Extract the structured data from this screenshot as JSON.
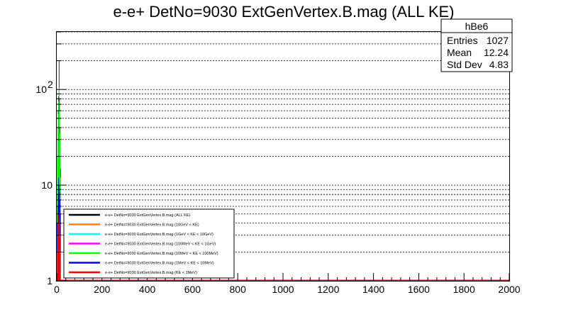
{
  "chart_data": {
    "type": "histogram",
    "title": "e-e+ DetNo=9030 ExtGenVertex.B.mag (ALL KE)",
    "xlabel": "",
    "ylabel": "",
    "xlim": [
      0,
      2000
    ],
    "ylim": [
      1,
      400
    ],
    "y_scale": "log",
    "grid": "y-major-and-minor",
    "x_ticks": [
      0,
      200,
      400,
      600,
      800,
      1000,
      1200,
      1400,
      1600,
      1800,
      2000
    ],
    "y_ticks": [
      {
        "value": 1,
        "label": "1"
      },
      {
        "value": 10,
        "label": "10"
      },
      {
        "value": 100,
        "label": "10",
        "sup": "2"
      }
    ],
    "legend_placement": "bottom-left",
    "series": [
      {
        "name": "e-e+ DetNo=9030 ExtGenVertex.B.mag (ALL KE)",
        "color": "#000000",
        "x": [
          6,
          8,
          10,
          12,
          14,
          16
        ],
        "values": [
          60,
          85,
          200,
          80,
          40,
          15
        ]
      },
      {
        "name": "e-e+ DetNo=9030 ExtGenVertex.B.mag (10GeV < KE)",
        "color": "#ff8000",
        "x": [],
        "values": []
      },
      {
        "name": "e-e+ DetNo=9030 ExtGenVertex.B.mag (1GeV < KE < 10GeV)",
        "color": "#00ffff",
        "x": [],
        "values": []
      },
      {
        "name": "e-e+ DetNo=9030 ExtGenVertex.B.mag (100MeV < KE < 1GeV)",
        "color": "#ff00ff",
        "x": [],
        "values": []
      },
      {
        "name": "e-e+ DetNo=9030 ExtGenVertex.B.mag (10MeV < KE < 100MeV)",
        "color": "#00ff00",
        "x": [
          2,
          4,
          6,
          8,
          10,
          12,
          14,
          16
        ],
        "values": [
          20,
          40,
          55,
          75,
          105,
          60,
          35,
          12
        ]
      },
      {
        "name": "e-e+ DetNo=9030 ExtGenVertex.B.mag (1MeV < KE < 10MeV)",
        "color": "#0000ff",
        "x": [
          2,
          4,
          6,
          8,
          10,
          12,
          14,
          16
        ],
        "values": [
          4,
          6,
          8,
          12,
          10,
          9,
          7,
          5
        ]
      },
      {
        "name": "e-e+ DetNo=9030 ExtGenVertex.B.mag (KE < 1MeV)",
        "color": "#ff0000",
        "x": [
          2,
          4,
          6,
          8,
          10,
          12,
          14,
          16
        ],
        "values": [
          2,
          3,
          4,
          5,
          4.5,
          4,
          3,
          2
        ]
      }
    ],
    "stats_box": {
      "name": "hBe6",
      "rows": [
        {
          "label": "Entries",
          "value": "1027"
        },
        {
          "label": "Mean",
          "value": "12.24"
        },
        {
          "label": "Std Dev",
          "value": "4.83"
        }
      ]
    }
  }
}
